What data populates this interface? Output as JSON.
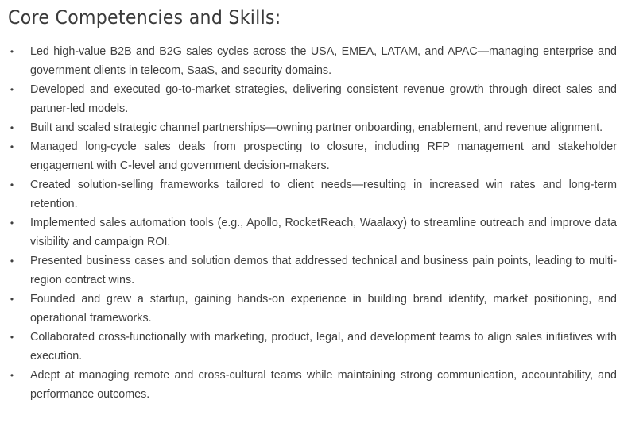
{
  "section": {
    "title": "Core Competencies and Skills:",
    "bullet_icon": "•",
    "items": [
      "Led high-value B2B and B2G sales cycles across the USA, EMEA, LATAM, and APAC—managing enterprise and government clients in telecom, SaaS, and security domains.",
      "Developed and executed go-to-market strategies, delivering consistent revenue growth through direct sales and partner-led models.",
      "Built and scaled strategic channel partnerships—owning partner onboarding, enablement, and revenue alignment.",
      "Managed long-cycle sales deals from prospecting to closure, including RFP management and stakeholder engagement with C-level and government decision-makers.",
      "Created solution-selling frameworks tailored to client needs—resulting in increased win rates and long-term retention.",
      "Implemented sales automation tools (e.g., Apollo, RocketReach, Waalaxy) to streamline outreach and improve data visibility and campaign ROI.",
      "Presented business cases and solution demos that addressed technical and business pain points, leading to multi-region contract wins.",
      "Founded and grew a startup, gaining hands-on experience in building brand identity, market positioning, and operational frameworks.",
      "Collaborated cross-functionally with marketing, product, legal, and development teams to align sales initiatives with execution.",
      "Adept at managing remote and cross-cultural teams while maintaining strong communication, accountability, and performance outcomes."
    ]
  }
}
